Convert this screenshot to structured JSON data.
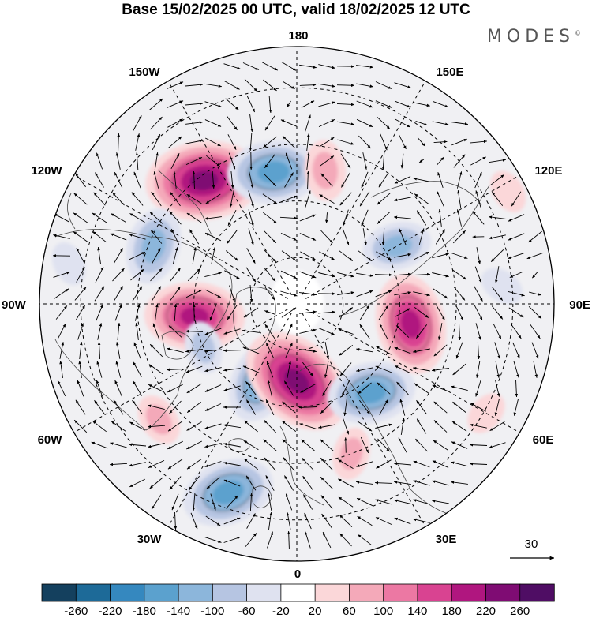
{
  "title": "Base 15/02/2025 00 UTC, valid 18/02/2025 12 UTC",
  "brand": "MODES",
  "brand_mark": "©",
  "longitude_labels": {
    "top": "180",
    "bottom": "0",
    "left": "90W",
    "right": "90E",
    "upper_left_1": "150W",
    "upper_left_2": "120W",
    "upper_right_1": "150E",
    "upper_right_2": "120E",
    "lower_left_1": "60W",
    "lower_left_2": "30W",
    "lower_right_1": "60E",
    "lower_right_2": "30E"
  },
  "reference_vector": {
    "label": "30"
  },
  "colorbar": {
    "tick_labels": [
      "-260",
      "-220",
      "-180",
      "-140",
      "-100",
      "-60",
      "-20",
      "20",
      "60",
      "100",
      "140",
      "180",
      "220",
      "260"
    ],
    "colors": [
      "#14405e",
      "#1d6a98",
      "#3588bf",
      "#5ba1ce",
      "#8cb6db",
      "#b6c5e2",
      "#dfe2f0",
      "#ffffff",
      "#fbd7d9",
      "#f4a9b9",
      "#ec78a3",
      "#d94391",
      "#b0167f",
      "#7f0c73",
      "#4f0d64"
    ]
  },
  "anomaly_centers": [
    {
      "lon": -143,
      "r": 0.6,
      "value": 220
    },
    {
      "lon": -170,
      "r": 0.52,
      "value": -160
    },
    {
      "lon": -112,
      "r": 0.6,
      "value": -120
    },
    {
      "lon": -83,
      "r": 0.4,
      "value": 180
    },
    {
      "lon": -25,
      "r": 0.33,
      "value": -140
    },
    {
      "lon": -20,
      "r": 0.78,
      "value": -160
    },
    {
      "lon": 0,
      "r": 0.3,
      "value": 220
    },
    {
      "lon": 20,
      "r": 0.62,
      "value": 60
    },
    {
      "lon": 40,
      "r": 0.45,
      "value": -150
    },
    {
      "lon": 80,
      "r": 0.45,
      "value": 180
    },
    {
      "lon": 120,
      "r": 0.45,
      "value": -100
    },
    {
      "lon": 168,
      "r": 0.53,
      "value": 80
    },
    {
      "lon": 118,
      "r": 0.93,
      "value": 40
    },
    {
      "lon": -50,
      "r": 0.7,
      "value": 60
    },
    {
      "lon": -65,
      "r": 0.4,
      "value": -60
    },
    {
      "lon": -100,
      "r": 0.9,
      "value": -40
    },
    {
      "lon": 60,
      "r": 0.85,
      "value": 40
    },
    {
      "lon": 95,
      "r": 0.8,
      "value": -40
    }
  ]
}
